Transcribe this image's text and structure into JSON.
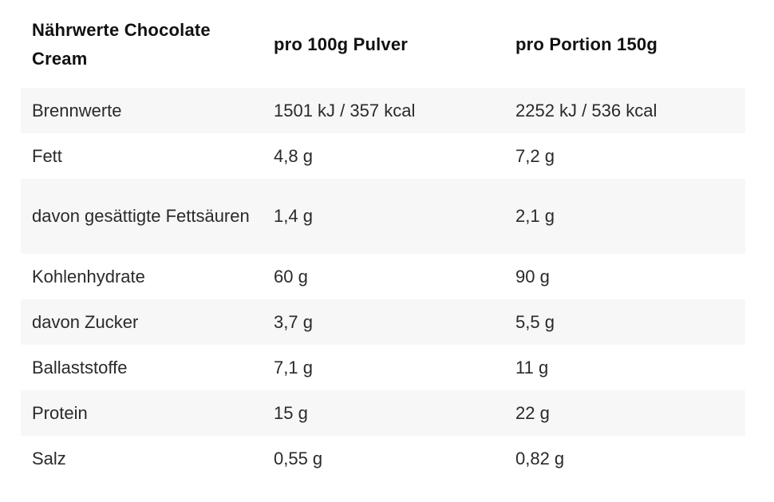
{
  "table": {
    "headers": [
      "Nährwerte Chocolate Cream",
      "pro 100g Pulver",
      "pro Portion 150g"
    ],
    "rows": [
      [
        "Brennwerte",
        "1501 kJ / 357 kcal",
        "2252 kJ / 536 kcal"
      ],
      [
        "Fett",
        "4,8 g",
        "7,2 g"
      ],
      [
        "davon gesättigte Fettsäuren",
        "1,4 g",
        "2,1 g"
      ],
      [
        "Kohlenhydrate",
        "60 g",
        "90 g"
      ],
      [
        "davon Zucker",
        "3,7 g",
        "5,5 g"
      ],
      [
        "Ballaststoffe",
        "7,1 g",
        "11 g"
      ],
      [
        "Protein",
        "15 g",
        "22 g"
      ],
      [
        "Salz",
        "0,55 g",
        "0,82 g"
      ]
    ]
  }
}
